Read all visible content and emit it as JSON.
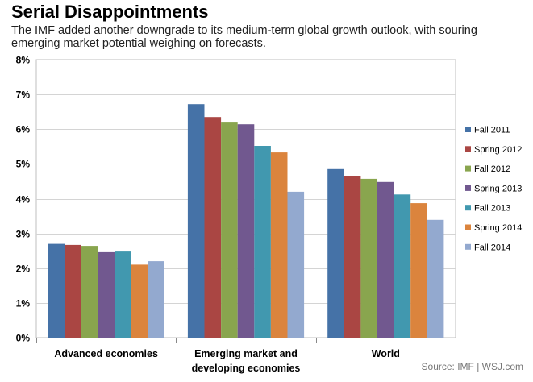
{
  "title": "Serial Disappointments",
  "subtitle_lines": [
    "The IMF  added another downgrade to its medium-term global growth outlook, with souring",
    "emerging market potential weighing on forecasts."
  ],
  "source": "Source: IMF  |  WSJ.com",
  "chart_data": {
    "type": "bar",
    "title": "Serial Disappointments",
    "xlabel": "",
    "ylabel": "",
    "ylim": [
      0,
      8
    ],
    "yticks": [
      "0%",
      "1%",
      "2%",
      "3%",
      "4%",
      "5%",
      "6%",
      "7%",
      "8%"
    ],
    "grid": true,
    "legend_position": "right",
    "categories": [
      [
        "Advanced economies"
      ],
      [
        "Emerging market and",
        "developing economies"
      ],
      [
        "World"
      ]
    ],
    "series": [
      {
        "name": "Fall 2011",
        "color": "#4572a7",
        "values": [
          2.7,
          6.72,
          4.85
        ]
      },
      {
        "name": "Spring 2012",
        "color": "#aa4643",
        "values": [
          2.67,
          6.35,
          4.65
        ]
      },
      {
        "name": "Fall 2012",
        "color": "#89a54e",
        "values": [
          2.64,
          6.19,
          4.57
        ]
      },
      {
        "name": "Spring 2013",
        "color": "#71588f",
        "values": [
          2.46,
          6.14,
          4.48
        ]
      },
      {
        "name": "Fall 2013",
        "color": "#4198af",
        "values": [
          2.48,
          5.52,
          4.12
        ]
      },
      {
        "name": "Spring 2014",
        "color": "#db843d",
        "values": [
          2.1,
          5.33,
          3.87
        ]
      },
      {
        "name": "Fall 2014",
        "color": "#93a9cf",
        "values": [
          2.2,
          4.2,
          3.39
        ]
      }
    ]
  }
}
